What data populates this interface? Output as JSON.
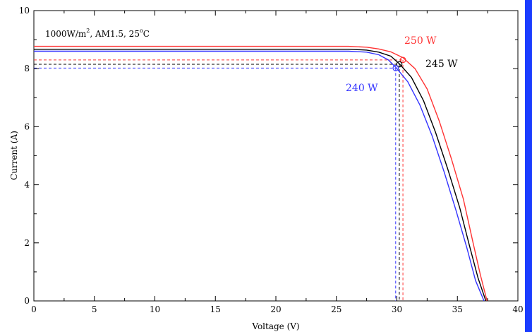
{
  "chart_data": {
    "type": "line",
    "xlabel": "Voltage (V)",
    "ylabel": "Current (A)",
    "xlim": [
      0,
      40
    ],
    "ylim": [
      0,
      10
    ],
    "x_ticks": [
      0,
      5,
      10,
      15,
      20,
      25,
      30,
      35,
      40
    ],
    "y_ticks": [
      0,
      2,
      4,
      6,
      8,
      10
    ],
    "grid": false,
    "annotation": {
      "text_main": "1000W/m",
      "text_sup1": "2",
      "text_mid": ", AM1.5, 25",
      "text_sup2": "o",
      "text_end": "C"
    },
    "series": [
      {
        "name": "250 W",
        "color": "#ff3333",
        "mpp": {
          "v": 30.5,
          "i": 8.3
        },
        "points": [
          [
            0,
            8.77
          ],
          [
            10,
            8.77
          ],
          [
            20,
            8.77
          ],
          [
            26,
            8.77
          ],
          [
            27.5,
            8.74
          ],
          [
            28.5,
            8.68
          ],
          [
            29.5,
            8.58
          ],
          [
            30.5,
            8.38
          ],
          [
            31.5,
            8.0
          ],
          [
            32.5,
            7.3
          ],
          [
            33.5,
            6.2
          ],
          [
            34.5,
            4.9
          ],
          [
            35.5,
            3.5
          ],
          [
            36.3,
            2.0
          ],
          [
            36.9,
            0.9
          ],
          [
            37.45,
            0.0
          ]
        ]
      },
      {
        "name": "245 W",
        "color": "#000000",
        "mpp": {
          "v": 30.2,
          "i": 8.15
        },
        "points": [
          [
            0,
            8.67
          ],
          [
            10,
            8.67
          ],
          [
            20,
            8.67
          ],
          [
            26,
            8.67
          ],
          [
            27.5,
            8.64
          ],
          [
            28.5,
            8.57
          ],
          [
            29.5,
            8.43
          ],
          [
            30.2,
            8.17
          ],
          [
            31.2,
            7.7
          ],
          [
            32.2,
            6.9
          ],
          [
            33.2,
            5.8
          ],
          [
            34.2,
            4.55
          ],
          [
            35.2,
            3.2
          ],
          [
            36.0,
            1.9
          ],
          [
            36.7,
            0.8
          ],
          [
            37.35,
            0.0
          ]
        ]
      },
      {
        "name": "240 W",
        "color": "#3333ff",
        "mpp": {
          "v": 29.9,
          "i": 8.02
        },
        "points": [
          [
            0,
            8.6
          ],
          [
            10,
            8.6
          ],
          [
            20,
            8.6
          ],
          [
            26,
            8.6
          ],
          [
            27.5,
            8.57
          ],
          [
            28.5,
            8.48
          ],
          [
            29.3,
            8.3
          ],
          [
            29.9,
            8.05
          ],
          [
            30.9,
            7.55
          ],
          [
            31.9,
            6.75
          ],
          [
            32.9,
            5.7
          ],
          [
            33.9,
            4.45
          ],
          [
            34.9,
            3.1
          ],
          [
            35.8,
            1.8
          ],
          [
            36.5,
            0.7
          ],
          [
            37.2,
            0.0
          ]
        ]
      }
    ]
  },
  "right_strip_color": "#1a3cff"
}
